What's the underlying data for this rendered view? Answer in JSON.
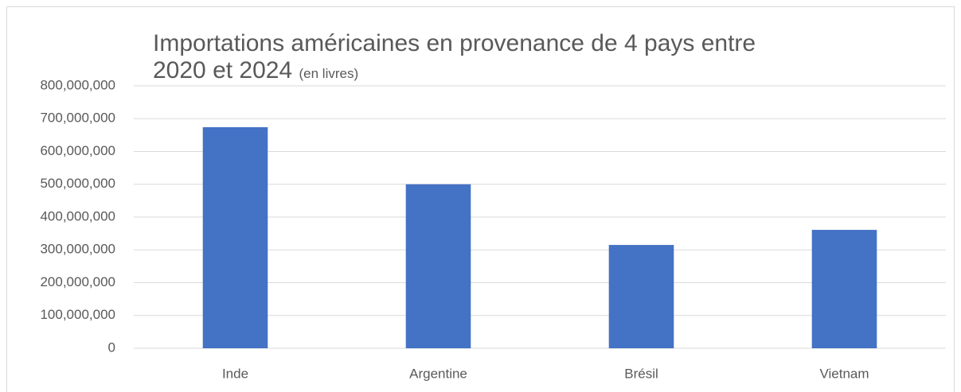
{
  "chart_data": {
    "type": "bar",
    "title": "Importations américaines en provenance de 4 pays entre 2020 et 2024",
    "subtitle": "(en livres)",
    "categories": [
      "Inde",
      "Argentine",
      "Brésil",
      "Vietnam"
    ],
    "values": [
      674000000,
      500000000,
      315000000,
      361000000
    ],
    "color": "#4472c4",
    "ylim": [
      0,
      800000000
    ],
    "yticks": [
      0,
      {
        "value": 100000000,
        "label": "100,000,000"
      },
      {
        "value": 200000000,
        "label": "200,000,000"
      },
      {
        "value": 300000000,
        "label": "300,000,000"
      },
      {
        "value": 400000000,
        "label": "400,000,000"
      },
      {
        "value": 500000000,
        "label": "500,000,000"
      },
      {
        "value": 600000000,
        "label": "600,000,000"
      },
      {
        "value": 700000000,
        "label": "700,000,000"
      },
      {
        "value": 800000000,
        "label": "800,000,000"
      }
    ],
    "grid": true
  }
}
